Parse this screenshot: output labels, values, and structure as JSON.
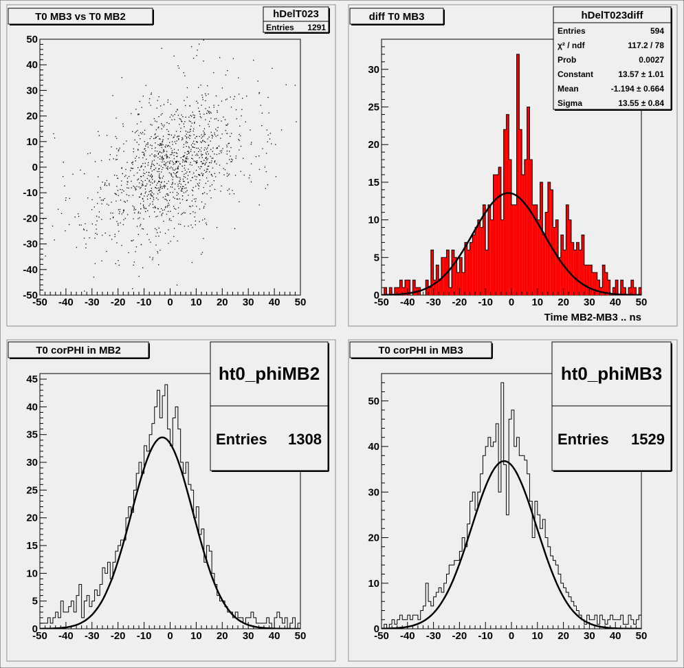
{
  "canvas_bg": "#efefef",
  "frame_color": "#8a8a8a",
  "fill_red": "#ff0000",
  "chart_data": [
    {
      "type": "scatter",
      "title": "T0 MB3 vs T0 MB2",
      "stats": {
        "name": "hDelT023",
        "rows": [
          {
            "label": "Entries",
            "value": "1291"
          }
        ]
      },
      "xlim": [
        -50,
        50
      ],
      "ylim": [
        -50,
        50
      ],
      "xticks": [
        -50,
        -40,
        -30,
        -20,
        -10,
        0,
        10,
        20,
        30,
        40,
        50
      ],
      "yticks": [
        -50,
        -40,
        -30,
        -20,
        -10,
        0,
        10,
        20,
        30,
        40,
        50
      ],
      "points_summary": {
        "entries": 1291,
        "center": [
          0,
          0
        ],
        "correlation": 0.45,
        "sigma": 13
      }
    },
    {
      "type": "bar",
      "title": "diff T0 MB3",
      "xlabel": "Time MB2-MB3  ..  ns",
      "fill": "red",
      "stats": {
        "name": "hDelT023diff",
        "rows": [
          {
            "label": "Entries",
            "value": "594"
          },
          {
            "label": "χ² / ndf",
            "value": "117.2 / 78"
          },
          {
            "label": "Prob",
            "value": "0.0027"
          },
          {
            "label": "Constant",
            "value": "13.57 ± 1.01"
          },
          {
            "label": "Mean",
            "value": "-1.194 ± 0.664"
          },
          {
            "label": "Sigma",
            "value": "13.55 ± 0.84"
          }
        ]
      },
      "xlim": [
        -50,
        50
      ],
      "ylim": [
        0,
        34
      ],
      "xticks": [
        -50,
        -40,
        -30,
        -20,
        -10,
        0,
        10,
        20,
        30,
        40,
        50
      ],
      "yticks": [
        0,
        5,
        10,
        15,
        20,
        25,
        30
      ],
      "bins": {
        "xmin": -50,
        "xmax": 50,
        "values": [
          0,
          1,
          0,
          1,
          0,
          1,
          1,
          2,
          1,
          2,
          2,
          0,
          2,
          1,
          1,
          0,
          0,
          2,
          1,
          6,
          2,
          4,
          2,
          5,
          5,
          6,
          1,
          6,
          5,
          3,
          5,
          3,
          7,
          6,
          7,
          8,
          9,
          10,
          9,
          12,
          6,
          12,
          10,
          16,
          16,
          17,
          10,
          22,
          24,
          18,
          12,
          12,
          32,
          22,
          16,
          18,
          25,
          18,
          12,
          12,
          10,
          15,
          8,
          11,
          15,
          14,
          9,
          10,
          5,
          8,
          6,
          12,
          10,
          7,
          6,
          7,
          6,
          8,
          4,
          4,
          4,
          3,
          3,
          2,
          1,
          4,
          3,
          2,
          0,
          1,
          2,
          0,
          2,
          1,
          0,
          1,
          2,
          1,
          0,
          1
        ]
      },
      "fit": {
        "constant": 13.57,
        "mean": -1.194,
        "sigma": 13.55
      }
    },
    {
      "type": "line",
      "title": "T0 corPHI in MB2",
      "stats": {
        "name": "ht0_phiMB2",
        "rows": [
          {
            "label": "Entries",
            "value": "1308"
          }
        ]
      },
      "xlim": [
        -50,
        50
      ],
      "ylim": [
        0,
        46
      ],
      "xticks": [
        -50,
        -40,
        -30,
        -20,
        -10,
        0,
        10,
        20,
        30,
        40,
        50
      ],
      "yticks": [
        0,
        5,
        10,
        15,
        20,
        25,
        30,
        35,
        40,
        45
      ],
      "bins": {
        "xmin": -50,
        "xmax": 50,
        "values": [
          1,
          1,
          1,
          2,
          1,
          2,
          3,
          2,
          5,
          3,
          3,
          4,
          5,
          3,
          6,
          8,
          2,
          5,
          6,
          4,
          5,
          7,
          6,
          8,
          11,
          10,
          12,
          9,
          12,
          14,
          15,
          16,
          16,
          20,
          22,
          21,
          25,
          28,
          30,
          28,
          33,
          32,
          35,
          37,
          40,
          43,
          38,
          42,
          44,
          36,
          33,
          38,
          40,
          36,
          30,
          28,
          30,
          26,
          25,
          20,
          22,
          17,
          18,
          12,
          15,
          14,
          10,
          8,
          6,
          5,
          5,
          4,
          3,
          3,
          2,
          3,
          2,
          2,
          1,
          2,
          2,
          3,
          2,
          1,
          1,
          1,
          1,
          2,
          1,
          0,
          2,
          3,
          2,
          1,
          2,
          0,
          1,
          2,
          0,
          1
        ]
      },
      "fit": {
        "constant": 34.5,
        "mean": -3.0,
        "sigma": 11.8
      }
    },
    {
      "type": "line",
      "title": "T0 corPHI in MB3",
      "stats": {
        "name": "ht0_phiMB3",
        "rows": [
          {
            "label": "Entries",
            "value": "1529"
          }
        ]
      },
      "xlim": [
        -50,
        50
      ],
      "ylim": [
        0,
        56
      ],
      "xticks": [
        -50,
        -40,
        -30,
        -20,
        -10,
        0,
        10,
        20,
        30,
        40,
        50
      ],
      "yticks": [
        0,
        10,
        20,
        30,
        40,
        50
      ],
      "bins": {
        "xmin": -50,
        "xmax": 50,
        "values": [
          0,
          1,
          0,
          1,
          2,
          1,
          2,
          3,
          2,
          2,
          3,
          2,
          3,
          3,
          2,
          4,
          5,
          10,
          6,
          5,
          7,
          8,
          9,
          8,
          10,
          12,
          14,
          14,
          15,
          15,
          17,
          20,
          18,
          23,
          28,
          30,
          26,
          30,
          34,
          38,
          40,
          42,
          40,
          41,
          45,
          30,
          54,
          36,
          25,
          46,
          48,
          40,
          42,
          38,
          38,
          37,
          34,
          28,
          20,
          28,
          25,
          22,
          24,
          20,
          18,
          16,
          15,
          14,
          12,
          10,
          9,
          8,
          7,
          6,
          5,
          4,
          3,
          2,
          1,
          3,
          2,
          2,
          3,
          1,
          3,
          2,
          1,
          2,
          3,
          2,
          2,
          2,
          3,
          1,
          1,
          3,
          2,
          1,
          2,
          3
        ]
      },
      "fit": {
        "constant": 36.8,
        "mean": -2.8,
        "sigma": 12.5
      }
    }
  ]
}
